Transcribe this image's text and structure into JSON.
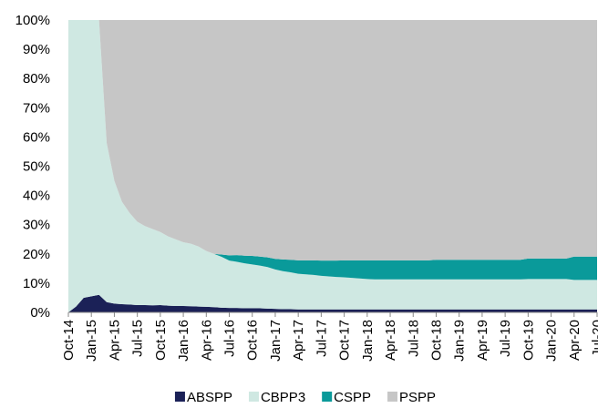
{
  "chart_data": {
    "type": "stacked-area",
    "categories": [
      "Oct-14",
      null,
      null,
      "Jan-15",
      null,
      null,
      "Apr-15",
      null,
      null,
      "Jul-15",
      null,
      null,
      "Oct-15",
      null,
      null,
      "Jan-16",
      null,
      null,
      "Apr-16",
      null,
      null,
      "Jul-16",
      null,
      null,
      "Oct-16",
      null,
      null,
      "Jan-17",
      null,
      null,
      "Apr-17",
      null,
      null,
      "Jul-17",
      null,
      null,
      "Oct-17",
      null,
      null,
      "Jan-18",
      null,
      null,
      "Apr-18",
      null,
      null,
      "Jul-18",
      null,
      null,
      "Oct-18",
      null,
      null,
      "Jan-19",
      null,
      null,
      "Apr-19",
      null,
      null,
      "Jul-19",
      null,
      null,
      "Oct-19",
      null,
      null,
      "Jan-20",
      null,
      null,
      "Apr-20",
      null,
      null,
      "Jul-20"
    ],
    "series": [
      {
        "name": "ABSPP",
        "color": "#1b2157",
        "values": [
          0,
          2,
          5,
          5.5,
          6,
          3.5,
          3,
          2.8,
          2.7,
          2.5,
          2.5,
          2.4,
          2.5,
          2.3,
          2.2,
          2.2,
          2.1,
          2,
          1.9,
          1.8,
          1.6,
          1.5,
          1.5,
          1.4,
          1.4,
          1.4,
          1.3,
          1.2,
          1.1,
          1.1,
          1,
          1,
          1,
          1,
          1,
          1,
          1,
          1,
          1,
          1,
          1,
          1,
          1,
          1,
          1,
          1,
          1,
          1,
          1,
          1,
          1,
          1,
          1,
          1,
          1,
          1,
          1,
          1,
          1,
          1,
          1,
          1,
          1,
          1,
          1,
          1,
          1,
          1,
          1,
          1
        ]
      },
      {
        "name": "CBPP3",
        "color": "#cfe8e2",
        "values": [
          100,
          98,
          95,
          94.5,
          94,
          54.5,
          42,
          35,
          31.3,
          28.5,
          27,
          26.1,
          25,
          23.7,
          22.8,
          21.8,
          21.4,
          20.5,
          19.1,
          18.2,
          17.4,
          16.2,
          15.8,
          15.4,
          15,
          14.6,
          14.2,
          13.5,
          13,
          12.6,
          12.2,
          12,
          11.8,
          11.5,
          11.3,
          11.1,
          11,
          10.8,
          10.6,
          10.4,
          10.3,
          10.3,
          10.3,
          10.3,
          10.3,
          10.3,
          10.3,
          10.3,
          10.3,
          10.3,
          10.3,
          10.3,
          10.3,
          10.3,
          10.3,
          10.3,
          10.3,
          10.3,
          10.3,
          10.3,
          10.4,
          10.4,
          10.4,
          10.4,
          10.4,
          10.4,
          10.1,
          10.1,
          10.1,
          10.1
        ]
      },
      {
        "name": "CSPP",
        "color": "#0a9a9a",
        "values": [
          0,
          0,
          0,
          0,
          0,
          0,
          0,
          0,
          0,
          0,
          0,
          0,
          0,
          0,
          0,
          0,
          0,
          0,
          0,
          0,
          0.8,
          1.8,
          2.3,
          2.6,
          2.9,
          3.1,
          3.3,
          3.6,
          4,
          4.3,
          4.6,
          4.8,
          5,
          5.2,
          5.4,
          5.6,
          5.8,
          6,
          6.2,
          6.4,
          6.5,
          6.5,
          6.5,
          6.5,
          6.5,
          6.5,
          6.5,
          6.5,
          6.7,
          6.7,
          6.7,
          6.7,
          6.7,
          6.7,
          6.7,
          6.7,
          6.7,
          6.7,
          6.7,
          6.7,
          7,
          7,
          7,
          7,
          7,
          7,
          8,
          8,
          8,
          8
        ]
      },
      {
        "name": "PSPP",
        "color": "#c6c6c6",
        "values": [
          0,
          0,
          0,
          0,
          0,
          42,
          55,
          62.2,
          66,
          69,
          70.5,
          71.5,
          72.5,
          74,
          75,
          76,
          76.5,
          77.5,
          79,
          80,
          80.2,
          80.5,
          80.4,
          80.6,
          80.7,
          80.9,
          81.2,
          81.7,
          81.9,
          82,
          82.2,
          82.2,
          82.2,
          82.3,
          82.3,
          82.3,
          82.2,
          82.2,
          82.2,
          82.2,
          82.2,
          82.2,
          82.2,
          82.2,
          82.2,
          82.2,
          82.2,
          82.2,
          82,
          82,
          82,
          82,
          82,
          82,
          82,
          82,
          82,
          82,
          82,
          82,
          81.6,
          81.6,
          81.6,
          81.6,
          81.6,
          81.6,
          80.9,
          80.9,
          80.9,
          80.9
        ]
      }
    ],
    "ylim": [
      0,
      100
    ],
    "yticks": [
      {
        "value": 0,
        "label": "0%"
      },
      {
        "value": 10,
        "label": "10%"
      },
      {
        "value": 20,
        "label": "20%"
      },
      {
        "value": 30,
        "label": "30%"
      },
      {
        "value": 40,
        "label": "40%"
      },
      {
        "value": 50,
        "label": "50%"
      },
      {
        "value": 60,
        "label": "60%"
      },
      {
        "value": 70,
        "label": "70%"
      },
      {
        "value": 80,
        "label": "80%"
      },
      {
        "value": 90,
        "label": "90%"
      },
      {
        "value": 100,
        "label": "100%"
      }
    ],
    "grid": false,
    "legend": "bottom"
  }
}
